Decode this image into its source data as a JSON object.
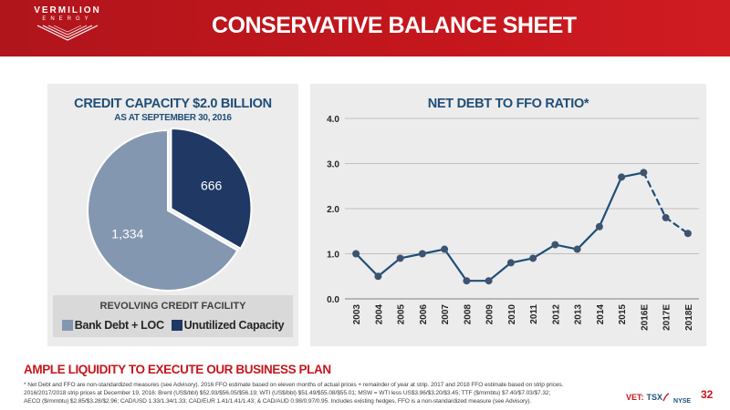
{
  "header": {
    "logo_text": "VERMILION",
    "logo_sub": "ENERGY",
    "title": "CONSERVATIVE BALANCE SHEET",
    "accent_color": "#c5161d"
  },
  "credit_panel": {
    "title": "CREDIT CAPACITY $2.0 BILLION",
    "subtitle": "AS AT SEPTEMBER 30, 2016",
    "legend_title": "REVOLVING CREDIT FACILITY"
  },
  "ratio_panel": {
    "title": "NET DEBT TO FFO RATIO*"
  },
  "chart_data": [
    {
      "type": "pie",
      "title": "CREDIT CAPACITY $2.0 BILLION",
      "subtitle": "AS AT SEPTEMBER 30, 2016",
      "slices": [
        {
          "label": "Bank Debt + LOC",
          "value": 1334,
          "display": "1,334",
          "color": "#8497b0"
        },
        {
          "label": "Unutilized Capacity",
          "value": 666,
          "display": "666",
          "color": "#1f3864"
        }
      ],
      "legend_title": "REVOLVING CREDIT FACILITY",
      "legend_position": "bottom"
    },
    {
      "type": "line",
      "title": "NET DEBT TO FFO RATIO*",
      "categories": [
        "2003",
        "2004",
        "2005",
        "2006",
        "2007",
        "2008",
        "2009",
        "2010",
        "2011",
        "2012",
        "2013",
        "2014",
        "2015",
        "2016E",
        "2017E",
        "2018E"
      ],
      "values": [
        1.0,
        0.5,
        0.9,
        1.0,
        1.1,
        0.4,
        0.4,
        0.8,
        0.9,
        1.2,
        1.1,
        1.6,
        2.7,
        2.8,
        1.8,
        1.45
      ],
      "dashed_from_index": 13,
      "ylim": [
        0,
        4
      ],
      "yticks": [
        "0.0",
        "1.0",
        "2.0",
        "3.0",
        "4.0"
      ],
      "grid": true,
      "line_color": "#1f4e79",
      "marker_color": "#3d5470"
    }
  ],
  "tagline": "AMPLE LIQUIDITY TO EXECUTE OUR BUSINESS PLAN",
  "footnote": {
    "line1": "* Net Debt and FFO are non-standardized measures (see Advisory). 2016 FFO estimate based on eleven months of actual prices + remainder of year at strip. 2017 and 2018 FFO estimate based on strip prices.",
    "line2": "2016/2017/2018 strip prices at December 19, 2016: Brent (US$/bbl) $52.93/$56.05/$56.19; WTI (US$/bbl) $51.49/$55.08/$55.01; MSW = WTI less US$3.96/$3.20/$3.45; TTF ($/mmbtu) $7.40/$7.03/$7.32;",
    "line3": "AECO ($/mmbtu) $2.85/$3.28/$2.96; CAD/USD 1.33/1.34/1.33; CAD/EUR 1.41/1.41/1.43; & CAD/AUD 0.98/0.97/0.95. Includes existing hedges. FFO is a non-standardized measure (see Advisory)."
  },
  "footer": {
    "ticker_vet": "VET:",
    "ticker_tsx": "TSX",
    "ticker_nyse": "NYSE",
    "page_number": "32"
  }
}
